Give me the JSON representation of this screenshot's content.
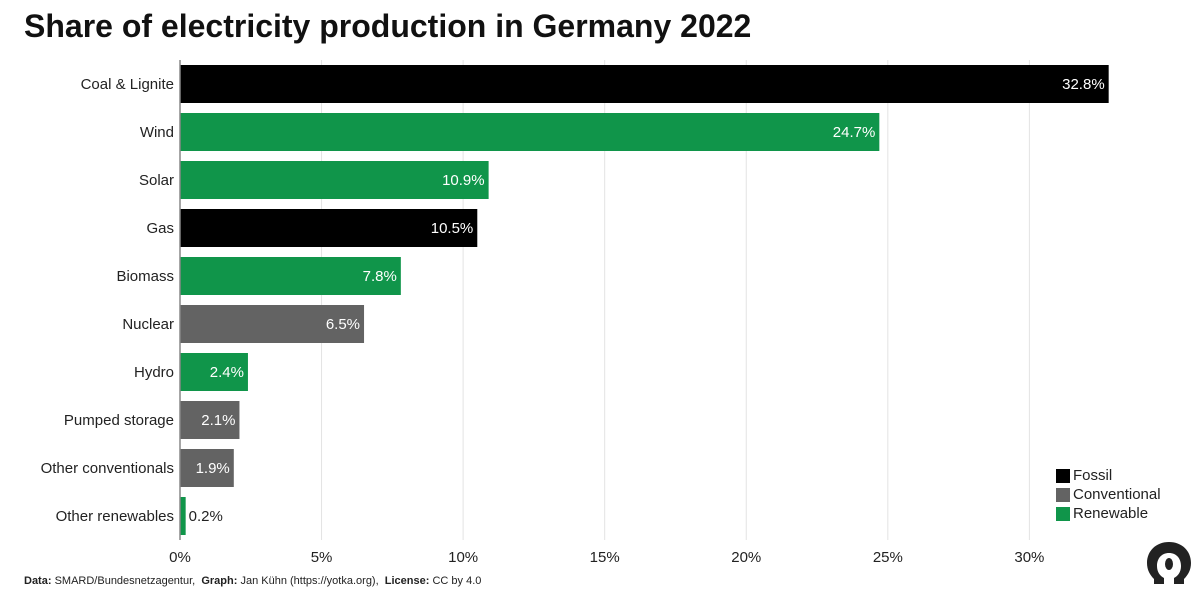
{
  "title": "Share of electricity production in Germany 2022",
  "colors": {
    "Fossil": "#000000",
    "Conventional": "#636363",
    "Renewable": "#10954a"
  },
  "legend": [
    {
      "label": "Fossil",
      "group": "Fossil"
    },
    {
      "label": "Conventional",
      "group": "Conventional"
    },
    {
      "label": "Renewable",
      "group": "Renewable"
    }
  ],
  "footer": {
    "data_key": "Data:",
    "data_val": "SMARD/Bundesnetzagentur,",
    "graph_key": "Graph:",
    "graph_val": "Jan Kühn (https://yotka.org),",
    "license_key": "License:",
    "license_val": "CC by 4.0"
  },
  "logo_icon": "yotka-head-logo-icon",
  "chart_data": {
    "type": "bar",
    "orientation": "horizontal",
    "title": "Share of electricity production in Germany 2022",
    "categories": [
      "Coal & Lignite",
      "Wind",
      "Solar",
      "Gas",
      "Biomass",
      "Nuclear",
      "Hydro",
      "Pumped storage",
      "Other conventionals",
      "Other renewables"
    ],
    "values": [
      32.8,
      24.7,
      10.9,
      10.5,
      7.8,
      6.5,
      2.4,
      2.1,
      1.9,
      0.2
    ],
    "value_labels": [
      "32.8%",
      "24.7%",
      "10.9%",
      "10.5%",
      "7.8%",
      "6.5%",
      "2.4%",
      "2.1%",
      "1.9%",
      "0.2%"
    ],
    "groups": [
      "Fossil",
      "Renewable",
      "Renewable",
      "Fossil",
      "Renewable",
      "Conventional",
      "Renewable",
      "Conventional",
      "Conventional",
      "Renewable"
    ],
    "xlim": [
      0,
      33.2
    ],
    "xticks": [
      0,
      5,
      10,
      15,
      20,
      25,
      30
    ],
    "xtick_labels": [
      "0%",
      "5%",
      "10%",
      "15%",
      "20%",
      "25%",
      "30%"
    ],
    "grid": true,
    "legend_position": "bottom-right"
  }
}
